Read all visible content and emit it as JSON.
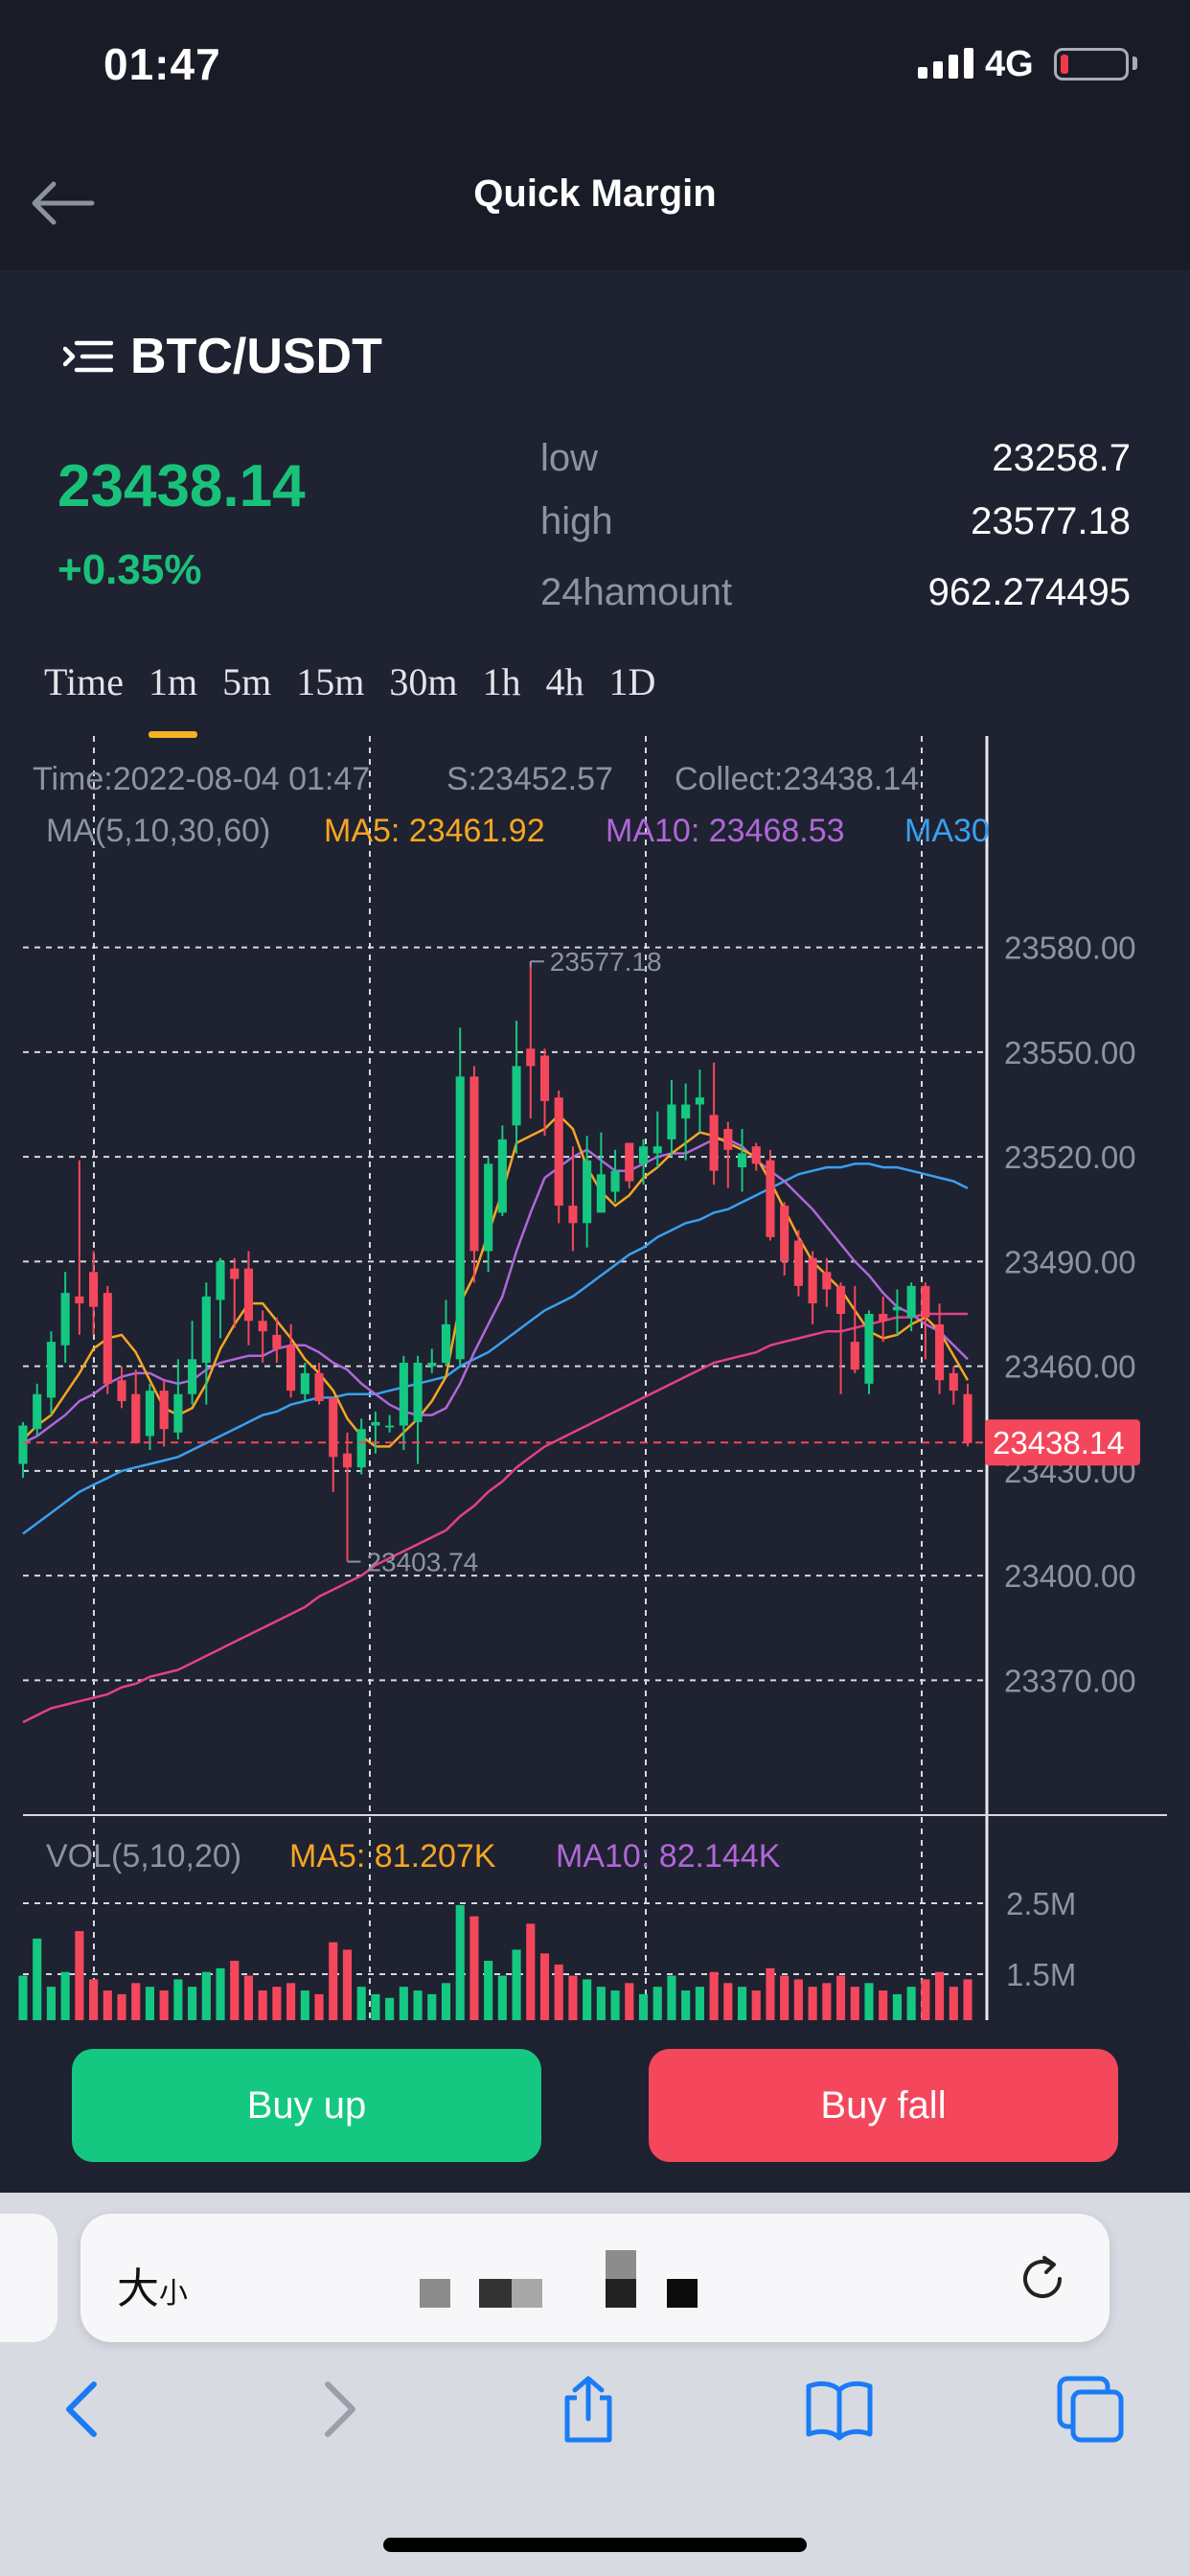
{
  "status_bar": {
    "time": "01:47",
    "network": "4G",
    "battery_color": "#f0394d"
  },
  "nav": {
    "title": "Quick Margin",
    "back_icon": "arrow-left-icon"
  },
  "pair": {
    "icon": "menu-list-icon",
    "name": "BTC/USDT"
  },
  "ticker": {
    "price": "23438.14",
    "change": "+0.35%",
    "up_color": "#19c27b",
    "stats": [
      {
        "label": "low",
        "value": "23258.7"
      },
      {
        "label": "high",
        "value": "23577.18"
      },
      {
        "label": "24hamount",
        "value": "962.274495"
      }
    ]
  },
  "timeframes": {
    "items": [
      "Time",
      "1m",
      "5m",
      "15m",
      "30m",
      "1h",
      "4h",
      "1D"
    ],
    "active": "1m"
  },
  "chart_info": {
    "time": "Time:2022-08-04 01:47",
    "s": "S:23452.57",
    "collect": "Collect:23438.14",
    "ma_label": "MA(5,10,30,60)",
    "ma5": "MA5: 23461.92",
    "ma10": "MA10: 23468.53",
    "ma30": "MA30",
    "vol_label": "VOL(5,10,20)",
    "vol_ma5": "MA5: 81.207K",
    "vol_ma10": "MA10: 82.144K",
    "current_price_tag": "23438.14"
  },
  "chart_data": {
    "type": "candlestick",
    "y_ticks": [
      "23580.00",
      "23550.00",
      "23520.00",
      "23490.00",
      "23460.00",
      "23430.00",
      "23400.00",
      "23370.00"
    ],
    "ylim": [
      23355,
      23595
    ],
    "vol_ticks": [
      "2.5M",
      "1.5M"
    ],
    "high_marker": "23577.18",
    "low_marker": "23403.74",
    "current_price": 23438.14,
    "colors": {
      "up": "#14c882",
      "down": "#f5475c",
      "ma5": "#f5a623",
      "ma10": "#b067d9",
      "ma30": "#3aa0f0",
      "ma60": "#e43f8c"
    },
    "candles": [
      [
        23432,
        23443,
        23428,
        23444
      ],
      [
        23442,
        23452,
        23440,
        23455
      ],
      [
        23451,
        23467,
        23446,
        23470
      ],
      [
        23466,
        23481,
        23461,
        23487
      ],
      [
        23480,
        23478,
        23469,
        23519
      ],
      [
        23487,
        23477,
        23469,
        23493
      ],
      [
        23481,
        23455,
        23452,
        23483
      ],
      [
        23456,
        23450,
        23448,
        23460
      ],
      [
        23452,
        23438,
        23438,
        23459
      ],
      [
        23440,
        23453,
        23436,
        23455
      ],
      [
        23453,
        23442,
        23437,
        23456
      ],
      [
        23441,
        23452,
        23439,
        23462
      ],
      [
        23452,
        23462,
        23449,
        23473
      ],
      [
        23461,
        23480,
        23449,
        23484
      ],
      [
        23479,
        23490,
        23468,
        23491
      ],
      [
        23488,
        23485,
        23471,
        23491
      ],
      [
        23488,
        23473,
        23466,
        23493
      ],
      [
        23473,
        23470,
        23461,
        23476
      ],
      [
        23469,
        23465,
        23461,
        23474
      ],
      [
        23466,
        23453,
        23451,
        23472
      ],
      [
        23452,
        23458,
        23450,
        23461
      ],
      [
        23458,
        23450,
        23449,
        23461
      ],
      [
        23451,
        23434,
        23424,
        23451
      ],
      [
        23435,
        23431,
        23404,
        23441
      ],
      [
        23431,
        23442,
        23429,
        23445
      ],
      [
        23443,
        23444,
        23435,
        23447
      ],
      [
        23443,
        23443,
        23441,
        23446
      ],
      [
        23443,
        23461,
        23436,
        23463
      ],
      [
        23444,
        23461,
        23432,
        23463
      ],
      [
        23460,
        23461,
        23458,
        23465
      ],
      [
        23461,
        23472,
        23460,
        23479
      ],
      [
        23462,
        23543,
        23460,
        23557
      ],
      [
        23543,
        23493,
        23484,
        23546
      ],
      [
        23493,
        23518,
        23487,
        23520
      ],
      [
        23504,
        23525,
        23503,
        23529
      ],
      [
        23529,
        23546,
        23521,
        23559
      ],
      [
        23551,
        23546,
        23531,
        23576
      ],
      [
        23549,
        23536,
        23526,
        23551
      ],
      [
        23537,
        23506,
        23501,
        23539
      ],
      [
        23506,
        23501,
        23493,
        23523
      ],
      [
        23501,
        23519,
        23494,
        23526
      ],
      [
        23504,
        23515,
        23504,
        23527
      ],
      [
        23510,
        23516,
        23507,
        23522
      ],
      [
        23524,
        23513,
        23511,
        23524
      ],
      [
        23518,
        23523,
        23512,
        23525
      ],
      [
        23521,
        23523,
        23517,
        23533
      ],
      [
        23525,
        23535,
        23520,
        23542
      ],
      [
        23531,
        23535,
        23519,
        23541
      ],
      [
        23535,
        23537,
        23527,
        23545
      ],
      [
        23532,
        23516,
        23512,
        23547
      ],
      [
        23528,
        23522,
        23511,
        23530
      ],
      [
        23517,
        23521,
        23510,
        23528
      ],
      [
        23523,
        23518,
        23516,
        23524
      ],
      [
        23519,
        23497,
        23496,
        23522
      ],
      [
        23506,
        23490,
        23486,
        23507
      ],
      [
        23496,
        23483,
        23480,
        23499
      ],
      [
        23491,
        23478,
        23472,
        23493
      ],
      [
        23487,
        23482,
        23477,
        23491
      ],
      [
        23483,
        23475,
        23452,
        23484
      ],
      [
        23467,
        23459,
        23458,
        23483
      ],
      [
        23455,
        23475,
        23452,
        23476
      ],
      [
        23475,
        23473,
        23467,
        23480
      ],
      [
        23476,
        23477,
        23469,
        23482
      ],
      [
        23474,
        23483,
        23470,
        23484
      ],
      [
        23483,
        23474,
        23462,
        23484
      ],
      [
        23472,
        23456,
        23452,
        23478
      ],
      [
        23458,
        23453,
        23449,
        23460
      ],
      [
        23452,
        23438,
        23437,
        23455
      ]
    ],
    "ma5": [
      23439,
      23443,
      23446,
      23452,
      23458,
      23465,
      23468,
      23469,
      23464,
      23456,
      23448,
      23446,
      23448,
      23455,
      23465,
      23472,
      23478,
      23478,
      23473,
      23468,
      23462,
      23458,
      23453,
      23445,
      23440,
      23437,
      23437,
      23441,
      23445,
      23450,
      23457,
      23478,
      23486,
      23498,
      23510,
      23524,
      23526,
      23528,
      23532,
      23528,
      23517,
      23510,
      23506,
      23509,
      23514,
      23517,
      23521,
      23524,
      23527,
      23526,
      23524,
      23522,
      23520,
      23513,
      23505,
      23497,
      23490,
      23486,
      23482,
      23476,
      23470,
      23468,
      23469,
      23472,
      23474,
      23470,
      23463,
      23456
    ],
    "ma10": [
      23438,
      23440,
      23443,
      23446,
      23450,
      23452,
      23455,
      23457,
      23458,
      23458,
      23456,
      23455,
      23456,
      23459,
      23461,
      23462,
      23463,
      23463,
      23465,
      23466,
      23466,
      23464,
      23461,
      23459,
      23455,
      23452,
      23449,
      23447,
      23446,
      23446,
      23448,
      23455,
      23464,
      23472,
      23480,
      23493,
      23504,
      23514,
      23517,
      23520,
      23522,
      23519,
      23516,
      23516,
      23518,
      23520,
      23521,
      23521,
      23523,
      23525,
      23525,
      23523,
      23519,
      23516,
      23513,
      23509,
      23505,
      23500,
      23495,
      23490,
      23486,
      23481,
      23477,
      23475,
      23472,
      23470,
      23466,
      23462
    ],
    "ma30": [
      23412,
      23415,
      23418,
      23421,
      23424,
      23426,
      23428,
      23430,
      23431,
      23432,
      23433,
      23434,
      23436,
      23438,
      23440,
      23442,
      23444,
      23446,
      23447,
      23449,
      23450,
      23451,
      23451,
      23452,
      23452,
      23452,
      23453,
      23454,
      23455,
      23456,
      23457,
      23460,
      23462,
      23464,
      23467,
      23470,
      23473,
      23476,
      23478,
      23480,
      23483,
      23486,
      23489,
      23492,
      23494,
      23497,
      23499,
      23501,
      23502,
      23504,
      23505,
      23507,
      23509,
      23511,
      23513,
      23515,
      23516,
      23517,
      23517,
      23518,
      23518,
      23517,
      23517,
      23516,
      23515,
      23514,
      23513,
      23511
    ],
    "ma60": [
      23358,
      23360,
      23362,
      23363,
      23364,
      23365,
      23366,
      23368,
      23369,
      23371,
      23372,
      23373,
      23375,
      23377,
      23379,
      23381,
      23383,
      23385,
      23387,
      23389,
      23391,
      23394,
      23396,
      23398,
      23400,
      23403,
      23405,
      23407,
      23409,
      23411,
      23413,
      23417,
      23420,
      23424,
      23427,
      23431,
      23434,
      23437,
      23439,
      23441,
      23443,
      23445,
      23447,
      23449,
      23451,
      23453,
      23455,
      23457,
      23459,
      23461,
      23462,
      23463,
      23464,
      23466,
      23467,
      23468,
      23469,
      23470,
      23470,
      23471,
      23472,
      23473,
      23474,
      23474,
      23475,
      23475,
      23475,
      23475
    ],
    "volumes": [
      1.2,
      2.2,
      0.9,
      1.3,
      2.4,
      1.1,
      0.8,
      0.7,
      1.0,
      0.9,
      0.8,
      1.1,
      0.9,
      1.3,
      1.4,
      1.6,
      1.2,
      0.8,
      0.9,
      1.0,
      0.8,
      0.7,
      2.1,
      1.9,
      0.9,
      0.7,
      0.6,
      0.9,
      0.8,
      0.7,
      1.0,
      3.1,
      2.8,
      1.6,
      1.2,
      1.9,
      2.6,
      1.8,
      1.5,
      1.2,
      1.1,
      0.9,
      0.8,
      1.0,
      0.7,
      0.9,
      1.2,
      0.8,
      0.9,
      1.3,
      1.0,
      0.9,
      0.8,
      1.4,
      1.2,
      1.1,
      0.9,
      1.0,
      1.2,
      0.9,
      1.0,
      0.8,
      0.7,
      0.9,
      1.1,
      1.3,
      0.9,
      1.1
    ]
  },
  "actions": {
    "buy_up": "Buy up",
    "buy_fall": "Buy fall"
  },
  "browser": {
    "text_size_label": "大",
    "text_size_small": "小"
  }
}
